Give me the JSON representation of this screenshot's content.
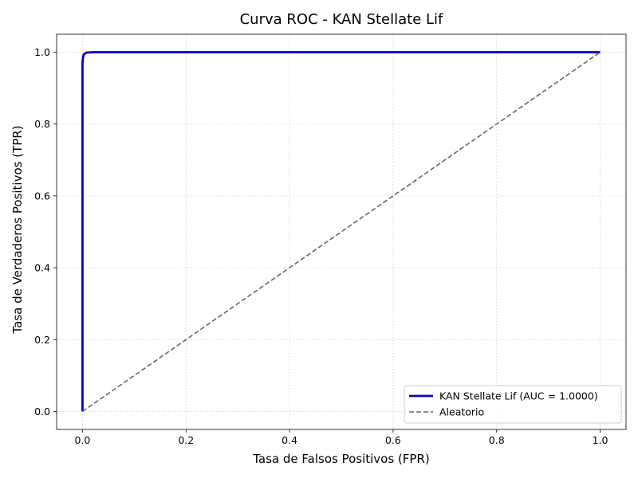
{
  "chart_data": {
    "type": "line",
    "title": "Curva ROC - KAN Stellate Lif",
    "xlabel": "Tasa de Falsos Positivos (FPR)",
    "ylabel": "Tasa de Verdaderos Positivos (TPR)",
    "xlim": [
      -0.05,
      1.05
    ],
    "ylim": [
      -0.05,
      1.05
    ],
    "x_ticks": [
      0.0,
      0.2,
      0.4,
      0.6,
      0.8,
      1.0
    ],
    "x_tick_labels": [
      "0.0",
      "0.2",
      "0.4",
      "0.6",
      "0.8",
      "1.0"
    ],
    "y_ticks": [
      0.0,
      0.2,
      0.4,
      0.6,
      0.8,
      1.0
    ],
    "y_tick_labels": [
      "0.0",
      "0.2",
      "0.4",
      "0.6",
      "0.8",
      "1.0"
    ],
    "grid": true,
    "legend_position": "lower-right",
    "series": [
      {
        "name": "KAN Stellate Lif (AUC = 1.0000)",
        "style": "solid",
        "color": "#0000c8",
        "x": [
          0.0,
          0.0,
          0.001,
          0.002,
          0.004,
          0.008,
          0.02,
          1.0
        ],
        "y": [
          0.0,
          0.97,
          0.985,
          0.992,
          0.996,
          0.999,
          1.0,
          1.0
        ]
      },
      {
        "name": "Aleatorio",
        "style": "dashed",
        "color": "#666666",
        "x": [
          0.0,
          1.0
        ],
        "y": [
          0.0,
          1.0
        ]
      }
    ]
  }
}
